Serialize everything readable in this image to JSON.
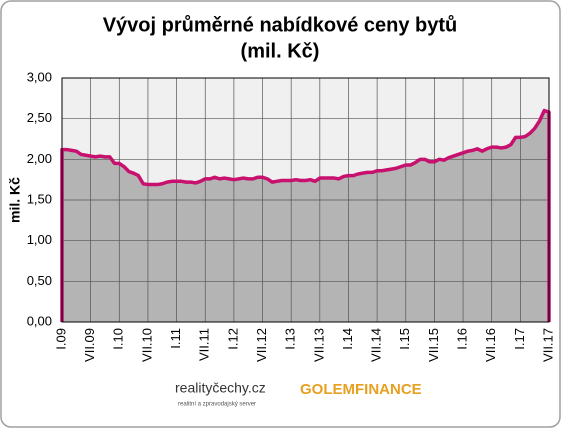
{
  "chart_data": {
    "type": "area",
    "title": "Vývoj průměrné nabídkové ceny bytů",
    "subtitle": "(mil. Kč)",
    "y_label": "mil. Kč",
    "logos": [
      "realityčechy.cz",
      "realitní a zpravodajský server",
      "GOLEMFINANCE"
    ],
    "categories": [
      "I.09",
      null,
      null,
      null,
      null,
      null,
      "VII.09",
      null,
      null,
      null,
      null,
      null,
      "I.10",
      null,
      null,
      null,
      null,
      null,
      "VII.10",
      null,
      null,
      null,
      null,
      null,
      "I.11",
      null,
      null,
      null,
      null,
      null,
      "VII.11",
      null,
      null,
      null,
      null,
      null,
      "I.12",
      null,
      null,
      null,
      null,
      null,
      "VII.12",
      null,
      null,
      null,
      null,
      null,
      "I.13",
      null,
      null,
      null,
      null,
      null,
      "VII.13",
      null,
      null,
      null,
      null,
      null,
      "I.14",
      null,
      null,
      null,
      null,
      null,
      "VII.14",
      null,
      null,
      null,
      null,
      null,
      "I.15",
      null,
      null,
      null,
      null,
      null,
      "VII.15",
      null,
      null,
      null,
      null,
      null,
      "I.16",
      null,
      null,
      null,
      null,
      null,
      "VII.16",
      null,
      null,
      null,
      null,
      null,
      "I.17",
      null,
      null,
      null,
      null,
      null,
      "VII.17"
    ],
    "values": [
      2.12,
      2.12,
      2.11,
      2.1,
      2.06,
      2.05,
      2.04,
      2.03,
      2.04,
      2.03,
      2.03,
      1.95,
      1.95,
      1.91,
      1.85,
      1.83,
      1.8,
      1.7,
      1.69,
      1.69,
      1.69,
      1.7,
      1.72,
      1.73,
      1.73,
      1.73,
      1.72,
      1.72,
      1.71,
      1.73,
      1.76,
      1.76,
      1.78,
      1.76,
      1.77,
      1.76,
      1.75,
      1.76,
      1.77,
      1.76,
      1.76,
      1.78,
      1.78,
      1.76,
      1.72,
      1.73,
      1.74,
      1.74,
      1.74,
      1.75,
      1.74,
      1.74,
      1.75,
      1.73,
      1.77,
      1.77,
      1.77,
      1.77,
      1.76,
      1.79,
      1.8,
      1.8,
      1.82,
      1.83,
      1.84,
      1.84,
      1.86,
      1.86,
      1.87,
      1.88,
      1.89,
      1.91,
      1.93,
      1.93,
      1.96,
      2.0,
      2.0,
      1.97,
      1.97,
      2.0,
      1.99,
      2.02,
      2.04,
      2.06,
      2.08,
      2.1,
      2.11,
      2.13,
      2.1,
      2.13,
      2.15,
      2.15,
      2.14,
      2.15,
      2.18,
      2.27,
      2.27,
      2.28,
      2.32,
      2.38,
      2.47,
      2.6,
      2.58
    ],
    "color": "#c8106e",
    "fill": "#b4b4b4",
    "ylim": [
      0,
      3
    ],
    "yticks": [
      {
        "value": 0,
        "label": "0,00"
      },
      {
        "value": 0.5,
        "label": "0,50"
      },
      {
        "value": 1,
        "label": "1,00"
      },
      {
        "value": 1.5,
        "label": "1,50"
      },
      {
        "value": 2,
        "label": "2,00"
      },
      {
        "value": 2.5,
        "label": "2,50"
      },
      {
        "value": 3,
        "label": "3,00"
      }
    ],
    "grid": true
  }
}
